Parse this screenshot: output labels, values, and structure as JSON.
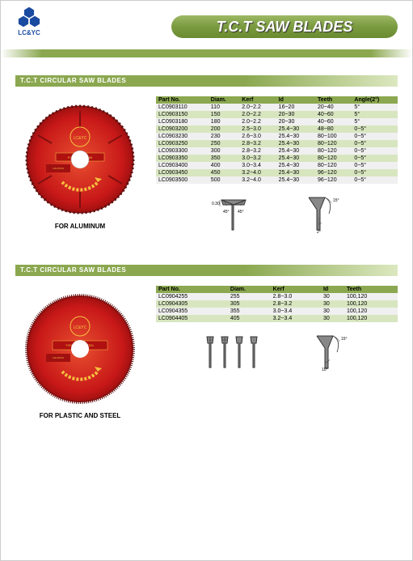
{
  "header": {
    "logo_label": "LC&YC",
    "title": "T.C.T SAW BLADES"
  },
  "section1": {
    "title": "T.C.T CIRCULAR SAW BLADES",
    "caption": "FOR ALUMINUM",
    "columns": [
      "Part No.",
      "Diam.",
      "Kerf",
      "Id",
      "Teeth",
      "Angle(2°)"
    ],
    "rows": [
      [
        "LC0903110",
        "110",
        "2.0~2.2",
        "16~20",
        "20~40",
        "5°"
      ],
      [
        "LC0903150",
        "150",
        "2.0~2.2",
        "20~30",
        "40~60",
        "5°"
      ],
      [
        "LC0903180",
        "180",
        "2.0~2.2",
        "20~30",
        "40~60",
        "5°"
      ],
      [
        "LC0903200",
        "200",
        "2.5~3.0",
        "25.4~30",
        "48~80",
        "0~5°"
      ],
      [
        "LC0903230",
        "230",
        "2.6~3.0",
        "25.4~30",
        "80~100",
        "0~5°"
      ],
      [
        "LC0903250",
        "250",
        "2.8~3.2",
        "25.4~30",
        "80~120",
        "0~5°"
      ],
      [
        "LC0903300",
        "300",
        "2.8~3.2",
        "25.4~30",
        "80~120",
        "0~5°"
      ],
      [
        "LC0903350",
        "350",
        "3.0~3.2",
        "25.4~30",
        "80~120",
        "0~5°"
      ],
      [
        "LC0903400",
        "400",
        "3.0~3.4",
        "25.4~30",
        "80~120",
        "0~5°"
      ],
      [
        "LC0903450",
        "450",
        "3.2~4.0",
        "25.4~30",
        "96~120",
        "0~5°"
      ],
      [
        "LC0903500",
        "500",
        "3.2~4.0",
        "25.4~30",
        "96~120",
        "0~5°"
      ]
    ],
    "diagram_labels": {
      "a45": "45°",
      "a45b": "45°",
      "h": "0.30",
      "a15": "15°",
      "a2": "2°"
    }
  },
  "section2": {
    "title": "T.C.T CIRCULAR SAW BLADES",
    "caption": "FOR PLASTIC AND STEEL",
    "columns": [
      "Part No.",
      "Diam.",
      "Kerf",
      "Id",
      "Teeth"
    ],
    "rows": [
      [
        "LC0904255",
        "255",
        "2.8~3.0",
        "30",
        "100,120"
      ],
      [
        "LC0904305",
        "305",
        "2.8~3.2",
        "30",
        "100,120"
      ],
      [
        "LC0904355",
        "355",
        "3.0~3.4",
        "30",
        "100,120"
      ],
      [
        "LC0904405",
        "405",
        "3.2~3.4",
        "30",
        "100,120"
      ]
    ],
    "diagram_labels": {
      "a15": "15°",
      "a10": "10°"
    }
  },
  "colors": {
    "blade_fill": "#d62020",
    "blade_label": "#f5c040",
    "blade_center": "#ffffff",
    "green_dark": "#7a9b3f",
    "green_light": "#d8e6c0",
    "logo_blue": "#1a4ba0"
  }
}
